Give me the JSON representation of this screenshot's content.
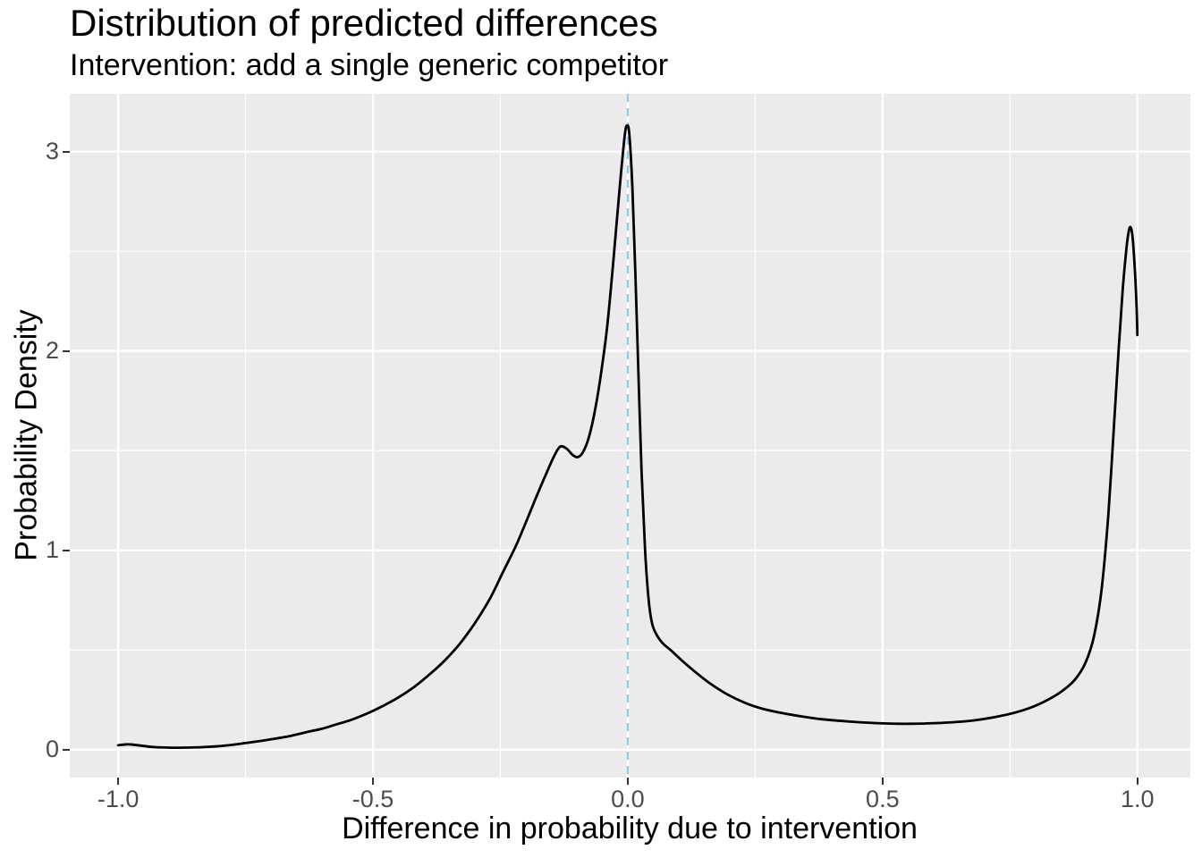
{
  "chart_data": {
    "type": "line",
    "title": "Distribution of predicted differences",
    "subtitle": "Intervention: add a single generic competitor",
    "xlabel": "Difference in probability due to intervention",
    "ylabel": "Probability Density",
    "xlim": [
      -1.095,
      1.104
    ],
    "ylim": [
      -0.14,
      3.29
    ],
    "x_ticks": [
      -1.0,
      -0.5,
      0.0,
      0.5,
      1.0
    ],
    "x_tick_labels": [
      "-1.0",
      "-0.5",
      "0.0",
      "0.5",
      "1.0"
    ],
    "x_minor_gridlines": [
      -0.75,
      -0.25,
      0.25,
      0.75
    ],
    "y_ticks": [
      0,
      1,
      2,
      3
    ],
    "y_tick_labels": [
      "0",
      "1",
      "2",
      "3"
    ],
    "y_minor_gridlines": [
      0.5,
      1.5,
      2.5
    ],
    "grid": true,
    "legend_position": "none",
    "reference_vline": {
      "x": 0.0,
      "linetype": "dashed",
      "color": "#87CEEB"
    },
    "theme": {
      "panel_background": "#EBEBEB",
      "grid_color": "#FFFFFF",
      "curve_color": "#000000",
      "tick_label_color": "#4D4D4D",
      "tick_mark_color": "#333333",
      "text_color": "#000000",
      "outer_background": "#FFFFFF"
    },
    "series": [
      {
        "name": "predicted-difference-density",
        "color": "#000000",
        "points": [
          [
            -1.0,
            0.022
          ],
          [
            -0.98,
            0.027
          ],
          [
            -0.955,
            0.02
          ],
          [
            -0.93,
            0.013
          ],
          [
            -0.9,
            0.01
          ],
          [
            -0.87,
            0.01
          ],
          [
            -0.84,
            0.012
          ],
          [
            -0.81,
            0.016
          ],
          [
            -0.78,
            0.023
          ],
          [
            -0.75,
            0.033
          ],
          [
            -0.72,
            0.044
          ],
          [
            -0.69,
            0.056
          ],
          [
            -0.66,
            0.07
          ],
          [
            -0.63,
            0.088
          ],
          [
            -0.6,
            0.105
          ],
          [
            -0.57,
            0.128
          ],
          [
            -0.54,
            0.152
          ],
          [
            -0.51,
            0.183
          ],
          [
            -0.48,
            0.22
          ],
          [
            -0.45,
            0.262
          ],
          [
            -0.42,
            0.313
          ],
          [
            -0.39,
            0.375
          ],
          [
            -0.36,
            0.445
          ],
          [
            -0.33,
            0.53
          ],
          [
            -0.3,
            0.635
          ],
          [
            -0.27,
            0.76
          ],
          [
            -0.245,
            0.89
          ],
          [
            -0.22,
            1.02
          ],
          [
            -0.2,
            1.14
          ],
          [
            -0.18,
            1.265
          ],
          [
            -0.16,
            1.385
          ],
          [
            -0.145,
            1.47
          ],
          [
            -0.133,
            1.52
          ],
          [
            -0.12,
            1.51
          ],
          [
            -0.108,
            1.478
          ],
          [
            -0.098,
            1.468
          ],
          [
            -0.088,
            1.492
          ],
          [
            -0.076,
            1.57
          ],
          [
            -0.063,
            1.72
          ],
          [
            -0.05,
            1.93
          ],
          [
            -0.04,
            2.13
          ],
          [
            -0.03,
            2.4
          ],
          [
            -0.021,
            2.67
          ],
          [
            -0.013,
            2.9
          ],
          [
            -0.006,
            3.08
          ],
          [
            -0.002,
            3.13
          ],
          [
            0.003,
            3.09
          ],
          [
            0.009,
            2.82
          ],
          [
            0.015,
            2.38
          ],
          [
            0.021,
            1.88
          ],
          [
            0.027,
            1.4
          ],
          [
            0.034,
            1.0
          ],
          [
            0.041,
            0.75
          ],
          [
            0.048,
            0.63
          ],
          [
            0.058,
            0.57
          ],
          [
            0.07,
            0.53
          ],
          [
            0.084,
            0.5
          ],
          [
            0.105,
            0.45
          ],
          [
            0.13,
            0.395
          ],
          [
            0.16,
            0.335
          ],
          [
            0.195,
            0.278
          ],
          [
            0.23,
            0.235
          ],
          [
            0.265,
            0.205
          ],
          [
            0.3,
            0.185
          ],
          [
            0.34,
            0.167
          ],
          [
            0.38,
            0.153
          ],
          [
            0.43,
            0.142
          ],
          [
            0.48,
            0.134
          ],
          [
            0.53,
            0.13
          ],
          [
            0.58,
            0.131
          ],
          [
            0.63,
            0.136
          ],
          [
            0.68,
            0.147
          ],
          [
            0.73,
            0.168
          ],
          [
            0.775,
            0.197
          ],
          [
            0.815,
            0.238
          ],
          [
            0.85,
            0.29
          ],
          [
            0.877,
            0.35
          ],
          [
            0.898,
            0.435
          ],
          [
            0.915,
            0.57
          ],
          [
            0.93,
            0.81
          ],
          [
            0.943,
            1.18
          ],
          [
            0.954,
            1.62
          ],
          [
            0.963,
            2.0
          ],
          [
            0.971,
            2.3
          ],
          [
            0.978,
            2.5
          ],
          [
            0.983,
            2.6
          ],
          [
            0.987,
            2.62
          ],
          [
            0.991,
            2.56
          ],
          [
            0.995,
            2.41
          ],
          [
            0.998,
            2.25
          ],
          [
            1.0,
            2.08
          ]
        ]
      }
    ]
  }
}
